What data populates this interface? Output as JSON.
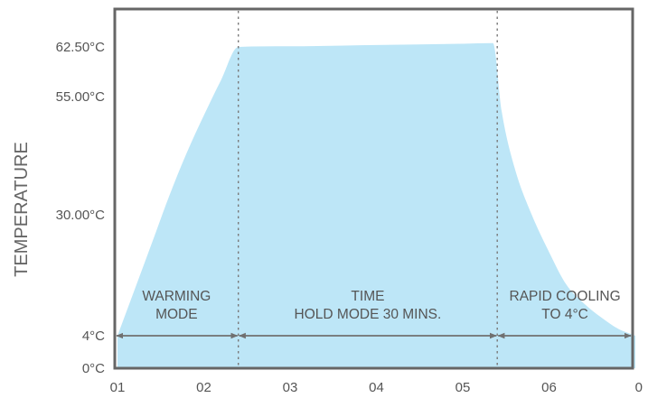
{
  "chart_data": {
    "type": "area",
    "ylabel": "TEMPERATURE",
    "xlabel": "",
    "x_ticks": [
      "01",
      "02",
      "03",
      "04",
      "05",
      "06",
      "0"
    ],
    "y_ticks": [
      "0°C",
      "4°C",
      "30.00°C",
      "55.00°C",
      "62.50°C"
    ],
    "ylim": [
      0,
      70
    ],
    "grid": false,
    "colors": {
      "fill": "#bde6f7",
      "frame": "#666666",
      "text": "#555555",
      "arrow": "#707070"
    },
    "series": [
      {
        "x": [
          1.0,
          1.2,
          1.4,
          1.6,
          1.8,
          2.0,
          2.2,
          2.4,
          3.0,
          4.0,
          5.0,
          5.35,
          5.45,
          5.6,
          5.8,
          6.0,
          6.2,
          6.4,
          6.6,
          6.8,
          7.0
        ],
        "values": [
          4,
          14,
          24,
          34,
          43,
          51,
          57.5,
          62.5,
          62.6,
          62.8,
          63.0,
          63.1,
          52,
          40,
          30,
          22,
          15,
          11,
          8,
          5.5,
          4
        ]
      }
    ],
    "phase_dividers": [
      2.4,
      5.4
    ],
    "phases": [
      {
        "lines": [
          "WARMING",
          "MODE"
        ]
      },
      {
        "lines": [
          "TIME",
          "HOLD MODE 30 MINS."
        ]
      },
      {
        "lines": [
          "RAPID COOLING",
          "TO 4°C"
        ]
      }
    ]
  }
}
